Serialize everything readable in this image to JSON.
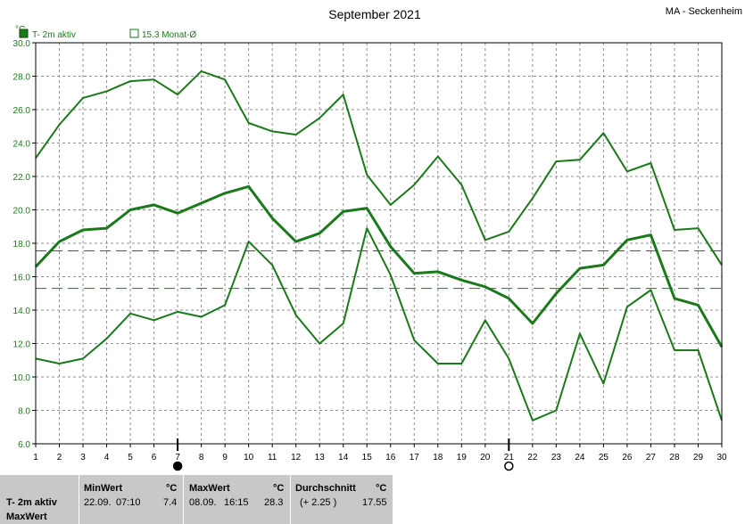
{
  "chart_data": {
    "type": "line",
    "title": "September 2021",
    "location": "MA - Seckenheim",
    "ylabel": "°C",
    "xlabel": "",
    "ylim": [
      6.0,
      30.0
    ],
    "yticks": [
      "6.0",
      "8.0",
      "10.0",
      "12.0",
      "14.0",
      "16.0",
      "18.0",
      "20.0",
      "22.0",
      "24.0",
      "26.0",
      "28.0",
      "30.0"
    ],
    "x": [
      1,
      2,
      3,
      4,
      5,
      6,
      7,
      8,
      9,
      10,
      11,
      12,
      13,
      14,
      15,
      16,
      17,
      18,
      19,
      20,
      21,
      22,
      23,
      24,
      25,
      26,
      27,
      28,
      29,
      30
    ],
    "grid": true,
    "legend": [
      {
        "label": "T- 2m aktiv",
        "style": "filled"
      },
      {
        "label": "15.3 Monat-Ø",
        "style": "outline"
      }
    ],
    "series": [
      {
        "role": "max",
        "values": [
          23.1,
          25.1,
          26.7,
          27.1,
          27.7,
          27.8,
          26.9,
          28.3,
          27.8,
          25.2,
          24.7,
          24.5,
          25.5,
          26.9,
          22.1,
          20.3,
          21.5,
          23.2,
          21.5,
          18.2,
          18.7,
          20.7,
          22.9,
          23.0,
          24.6,
          22.3,
          22.8,
          18.8,
          18.9,
          16.7
        ]
      },
      {
        "role": "mean",
        "values": [
          16.6,
          18.1,
          18.8,
          18.9,
          20.0,
          20.3,
          19.8,
          20.4,
          21.0,
          21.4,
          19.5,
          18.1,
          18.6,
          19.9,
          20.1,
          17.8,
          16.2,
          16.3,
          15.8,
          15.4,
          14.7,
          13.2,
          15.0,
          16.5,
          16.7,
          18.2,
          18.5,
          14.7,
          14.3,
          11.8
        ]
      },
      {
        "role": "min",
        "values": [
          11.1,
          10.8,
          11.1,
          12.3,
          13.8,
          13.4,
          13.9,
          13.6,
          14.3,
          18.1,
          16.7,
          13.7,
          12.0,
          13.2,
          18.9,
          16.1,
          12.2,
          10.8,
          10.8,
          13.4,
          11.1,
          7.4,
          8.0,
          12.6,
          9.6,
          14.2,
          15.2,
          11.6,
          11.6,
          7.4
        ]
      }
    ],
    "reference_lines": [
      17.55,
      15.3
    ],
    "moon_phases": [
      {
        "day": 7,
        "phase": "new"
      },
      {
        "day": 21,
        "phase": "full"
      }
    ],
    "colors": {
      "line": "#1a7a1a",
      "grid": "#909090",
      "stats_bg": "#c8c8c8"
    }
  },
  "stats": {
    "row_label_1": "T- 2m aktiv",
    "row_label_2": "MaxWert",
    "min": {
      "header": "MinWert",
      "unit": "°C",
      "date": "22.09.",
      "time": "07:10",
      "value": "7.4"
    },
    "max": {
      "header": "MaxWert",
      "unit": "°C",
      "date": "08.09.",
      "time": "16:15",
      "value": "28.3"
    },
    "avg": {
      "header": "Durchschnitt",
      "unit": "°C",
      "diff": "(+ 2.25 )",
      "value": "17.55"
    }
  }
}
